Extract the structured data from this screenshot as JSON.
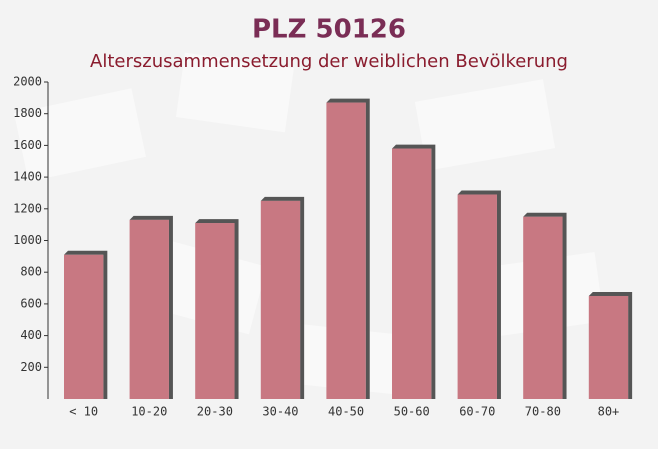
{
  "chart_data": {
    "type": "bar",
    "title": "PLZ 50126",
    "subtitle": "Alterszusammensetzung der weiblichen Bevölkerung",
    "categories": [
      "< 10",
      "10-20",
      "20-30",
      "30-40",
      "40-50",
      "50-60",
      "60-70",
      "70-80",
      "80+"
    ],
    "values": [
      910,
      1130,
      1110,
      1250,
      1870,
      1580,
      1290,
      1150,
      650
    ],
    "color": "#c0626d",
    "ylim": [
      0,
      2000
    ],
    "yticks": [
      200,
      400,
      600,
      800,
      1000,
      1200,
      1400,
      1600,
      1800,
      2000
    ]
  }
}
